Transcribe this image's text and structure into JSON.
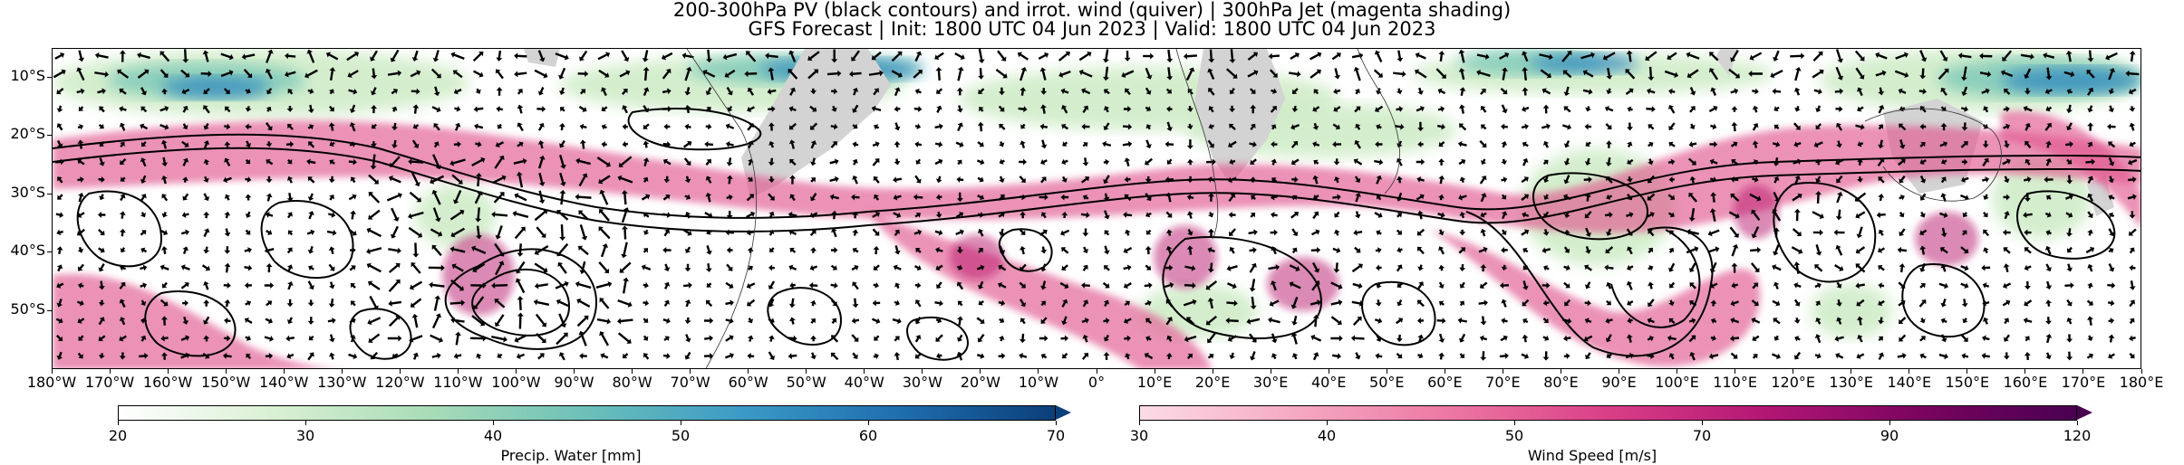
{
  "header": {
    "title_line1": "200-300hPa PV (black contours) and irrot. wind (quiver) | 300hPa Jet (magenta shading)",
    "title_line2": "GFS Forecast | Init: 1800 UTC 04 Jun 2023 | Valid: 1800 UTC 04 Jun 2023"
  },
  "map": {
    "lat_labels": [
      "10°S",
      "20°S",
      "30°S",
      "40°S",
      "50°S"
    ],
    "lat_values": [
      -10,
      -20,
      -30,
      -40,
      -50
    ],
    "lat_range": [
      -60,
      -5
    ],
    "lon_labels": [
      "180°W",
      "170°W",
      "160°W",
      "150°W",
      "140°W",
      "130°W",
      "120°W",
      "110°W",
      "100°W",
      "90°W",
      "80°W",
      "70°W",
      "60°W",
      "50°W",
      "40°W",
      "30°W",
      "20°W",
      "10°W",
      "0°",
      "10°E",
      "20°E",
      "30°E",
      "40°E",
      "50°E",
      "60°E",
      "70°E",
      "80°E",
      "90°E",
      "100°E",
      "110°E",
      "120°E",
      "130°E",
      "140°E",
      "150°E",
      "160°E",
      "170°E",
      "180°E"
    ],
    "lon_range": [
      -180,
      180
    ],
    "colors": {
      "jet": "#e0578f",
      "jet_core": "#b8196b",
      "pw_light": "#cdebc4",
      "pw_mid": "#7fc9b8",
      "pw_high": "#3a8fbf",
      "land": "#d3d3d3",
      "contour": "#000000"
    }
  },
  "colorbars": [
    {
      "label": "Precip. Water [mm]",
      "ticks": [
        "20",
        "30",
        "40",
        "50",
        "60",
        "70"
      ],
      "colors": [
        "#ffffff",
        "#d9f0d3",
        "#a8dcb7",
        "#6cc0b9",
        "#3b9ac6",
        "#1f6eae",
        "#0b3f7a"
      ]
    },
    {
      "label": "Wind Speed [m/s]",
      "ticks": [
        "30",
        "40",
        "50",
        "70",
        "90",
        "120"
      ],
      "colors": [
        "#fbdce6",
        "#f5a9c3",
        "#ec77a2",
        "#d93f87",
        "#b31774",
        "#7a0460",
        "#4a0050"
      ]
    }
  ]
}
